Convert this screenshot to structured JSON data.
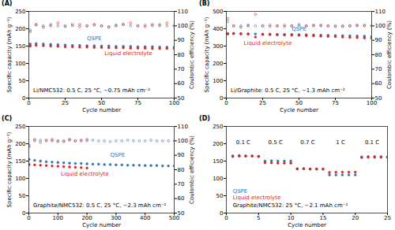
{
  "chart_data": [
    {
      "type": "scatter",
      "title": "(A)",
      "x_label": "Cycle number",
      "y_label": "Specific capacity (mAh g⁻¹)",
      "y2_label": "Coulombic efficiency (%)",
      "xlim": [
        0,
        100
      ],
      "xticks": [
        0,
        25,
        50,
        75,
        100
      ],
      "ylim": [
        0,
        250
      ],
      "yticks": [
        0,
        50,
        100,
        150,
        200,
        250
      ],
      "y2lim": [
        50,
        110
      ],
      "y2ticks": [
        50,
        60,
        70,
        80,
        90,
        100,
        110
      ],
      "x": [
        1,
        5,
        10,
        15,
        20,
        25,
        30,
        35,
        40,
        45,
        50,
        55,
        60,
        65,
        70,
        75,
        80,
        85,
        90,
        95,
        100
      ],
      "series": [
        {
          "name": "QSPE",
          "color": "#2e75b6",
          "marker": "circle",
          "values": [
            156,
            157,
            156,
            155,
            154,
            153,
            152,
            152,
            151,
            151,
            150,
            150,
            149,
            149,
            149,
            148,
            148,
            148,
            147,
            147,
            147
          ]
        },
        {
          "name": "Liquid electrolyte",
          "color": "#e2231a",
          "marker": "circle",
          "values": [
            150,
            152,
            151,
            150,
            149,
            148,
            148,
            147,
            147,
            146,
            146,
            145,
            145,
            145,
            144,
            144,
            144,
            143,
            143,
            143,
            143
          ]
        },
        {
          "name": "QSPE",
          "color": "#2e75b6",
          "marker": "open_circle",
          "axis": "y2",
          "values": [
            97,
            100.5,
            100,
            101,
            100,
            99.5,
            100,
            101,
            100,
            100.5,
            100,
            99.5,
            100.5,
            101,
            100,
            100,
            100.5,
            100,
            101,
            100,
            100
          ]
        },
        {
          "name": "Liquid electrolyte",
          "color": "#e2231a",
          "marker": "open_circle",
          "axis": "y2",
          "values": [
            96,
            101,
            99,
            100,
            102,
            100,
            101,
            99.5,
            100,
            101,
            100,
            99,
            100,
            101,
            102,
            100,
            99.5,
            101,
            100,
            102,
            100
          ]
        }
      ],
      "annotations": [
        {
          "text": "QSPE",
          "x": 40,
          "y": 172,
          "color": "#2e75b6"
        },
        {
          "text": "Liquid electrolyte",
          "x": 52,
          "y": 128,
          "color": "#e2231a"
        },
        {
          "text": "Li/NMC532: 0.5 C, 25 °C, ~0.75 mAh cm⁻²",
          "x": 3,
          "y": 22,
          "color": "#000000"
        }
      ]
    },
    {
      "type": "scatter",
      "title": "(B)",
      "x_label": "Cycle number",
      "y_label": "Specific capacity (mAh g⁻¹)",
      "y2_label": "Coulombic efficiency (%)",
      "xlim": [
        0,
        100
      ],
      "xticks": [
        0,
        25,
        50,
        75,
        100
      ],
      "ylim": [
        0,
        500
      ],
      "yticks": [
        0,
        100,
        200,
        300,
        400,
        500
      ],
      "y2lim": [
        50,
        110
      ],
      "y2ticks": [
        50,
        60,
        70,
        80,
        90,
        100,
        110
      ],
      "x": [
        1,
        5,
        10,
        15,
        20,
        25,
        30,
        35,
        40,
        45,
        50,
        55,
        60,
        65,
        70,
        75,
        80,
        85,
        90,
        95,
        100
      ],
      "series": [
        {
          "name": "QSPE",
          "color": "#2e75b6",
          "marker": "circle",
          "values": [
            372,
            373,
            372,
            371,
            370,
            369,
            369,
            368,
            367,
            367,
            366,
            365,
            364,
            363,
            362,
            361,
            360,
            359,
            358,
            357,
            356
          ]
        },
        {
          "name": "Liquid electrolyte",
          "color": "#e2231a",
          "marker": "circle",
          "values": [
            370,
            372,
            370,
            369,
            352,
            367,
            366,
            365,
            364,
            363,
            362,
            360,
            359,
            357,
            356,
            354,
            352,
            350,
            349,
            347,
            346
          ]
        },
        {
          "name": "QSPE",
          "color": "#2e75b6",
          "marker": "open_circle",
          "axis": "y2",
          "values": [
            103,
            100,
            100,
            100.5,
            100,
            100,
            99.5,
            100,
            100.5,
            100,
            100,
            100,
            100.5,
            100,
            100,
            100,
            99.5,
            100,
            100,
            100.5,
            100
          ]
        },
        {
          "name": "Liquid electrolyte",
          "color": "#e2231a",
          "marker": "open_circle",
          "axis": "y2",
          "values": [
            105,
            100,
            99,
            100,
            108,
            100,
            100.5,
            100,
            99.5,
            100,
            101,
            100,
            100,
            100.5,
            100,
            99.5,
            100,
            100,
            100.5,
            100,
            100
          ]
        }
      ],
      "annotations": [
        {
          "text": "QSPE",
          "x": 45,
          "y": 400,
          "color": "#2e75b6"
        },
        {
          "text": "Liquid electrolyte",
          "x": 12,
          "y": 318,
          "color": "#e2231a"
        },
        {
          "text": "Li/Graphite: 0.5 C, 25 °C, ~1.3 mAh cm⁻²",
          "x": 3,
          "y": 45,
          "color": "#000000"
        }
      ]
    },
    {
      "type": "scatter",
      "title": "(C)",
      "x_label": "Cycle number",
      "y_label": "Specific capacity (mAh g⁻¹)",
      "y2_label": "Coulombic efficiency (%)",
      "xlim": [
        0,
        500
      ],
      "xticks": [
        0,
        100,
        200,
        300,
        400,
        500
      ],
      "ylim": [
        0,
        250
      ],
      "yticks": [
        0,
        50,
        100,
        150,
        200,
        250
      ],
      "y2lim": [
        50,
        110
      ],
      "y2ticks": [
        50,
        60,
        70,
        80,
        90,
        100,
        110
      ],
      "x": [
        1,
        20,
        40,
        60,
        80,
        100,
        120,
        140,
        160,
        180,
        200,
        220,
        240,
        260,
        280,
        300,
        320,
        340,
        360,
        380,
        400,
        420,
        440,
        460,
        480,
        500
      ],
      "series": [
        {
          "name": "QSPE",
          "color": "#2e75b6",
          "marker": "circle",
          "values": [
            155,
            152,
            150,
            148,
            147,
            146,
            145,
            144,
            143,
            143,
            142,
            141,
            141,
            140,
            140,
            139,
            139,
            138,
            138,
            138,
            137,
            137,
            137,
            136,
            136,
            136
          ]
        },
        {
          "name": "Liquid electrolyte",
          "color": "#e2231a",
          "marker": "circle",
          "values": [
            140,
            139,
            138,
            137,
            136,
            135,
            134,
            133,
            132,
            131,
            130,
            null,
            null,
            null,
            null,
            null,
            null,
            null,
            null,
            null,
            null,
            null,
            null,
            null,
            null,
            null
          ]
        },
        {
          "name": "QSPE",
          "color": "#2e75b6",
          "marker": "open_circle",
          "axis": "y2",
          "values": [
            97,
            100,
            100.5,
            100,
            100,
            99.5,
            100,
            100.5,
            100,
            100,
            100,
            100.5,
            100,
            100,
            99.5,
            100,
            100,
            100.5,
            100,
            100,
            100,
            100.5,
            100,
            100,
            100,
            100
          ]
        },
        {
          "name": "Liquid electrolyte",
          "color": "#e2231a",
          "marker": "open_circle",
          "axis": "y2",
          "values": [
            96,
            101,
            99,
            100.5,
            101,
            100,
            99.5,
            101,
            100,
            100.5,
            101,
            null,
            null,
            null,
            null,
            null,
            null,
            null,
            null,
            null,
            null,
            null,
            null,
            null,
            null,
            null
          ]
        }
      ],
      "annotations": [
        {
          "text": "QSPE",
          "x": 280,
          "y": 168,
          "color": "#2e75b6"
        },
        {
          "text": "Liquid electrolyte",
          "x": 110,
          "y": 112,
          "color": "#e2231a"
        },
        {
          "text": "Graphite/NMC532: 0.5 C, 25 °C, ~2.3 mAh cm⁻²",
          "x": 15,
          "y": 22,
          "color": "#000000"
        }
      ]
    },
    {
      "type": "scatter",
      "title": "(D)",
      "x_label": "Cycle number",
      "xlim": [
        0,
        25
      ],
      "xticks": [
        0,
        5,
        10,
        15,
        20,
        25
      ],
      "ylim": [
        0,
        250
      ],
      "yticks": [
        0,
        50,
        100,
        150,
        200,
        250
      ],
      "x": [
        1,
        2,
        3,
        4,
        5,
        6,
        7,
        8,
        9,
        10,
        11,
        12,
        13,
        14,
        15,
        16,
        17,
        18,
        19,
        20,
        21,
        22,
        23,
        24,
        25
      ],
      "series": [
        {
          "name": "QSPE",
          "color": "#2e75b6",
          "marker": "circle",
          "values": [
            165,
            166,
            165,
            165,
            164,
            150,
            151,
            150,
            150,
            150,
            128,
            128,
            127,
            127,
            127,
            110,
            110,
            110,
            110,
            110,
            162,
            163,
            163,
            163,
            162
          ]
        },
        {
          "name": "Liquid electrolyte",
          "color": "#e2231a",
          "marker": "circle",
          "values": [
            163,
            164,
            164,
            164,
            163,
            145,
            145,
            144,
            144,
            144,
            127,
            128,
            127,
            127,
            127,
            117,
            118,
            118,
            118,
            118,
            160,
            161,
            161,
            161,
            161
          ]
        }
      ],
      "annotations": [
        {
          "text": "0.1 C",
          "x": 1.5,
          "y": 205,
          "color": "#000000"
        },
        {
          "text": "0.5 C",
          "x": 6.5,
          "y": 205,
          "color": "#000000"
        },
        {
          "text": "0.7 C",
          "x": 11.5,
          "y": 205,
          "color": "#000000"
        },
        {
          "text": "1 C",
          "x": 17,
          "y": 205,
          "color": "#000000"
        },
        {
          "text": "0.1 C",
          "x": 21.5,
          "y": 205,
          "color": "#000000"
        },
        {
          "text": "QSPE",
          "x": 1,
          "y": 62,
          "color": "#2e75b6"
        },
        {
          "text": "Liquid electrolyte",
          "x": 1,
          "y": 44,
          "color": "#e2231a"
        },
        {
          "text": "Graphite/NMC532: 25 °C, ~2.1 mAh cm⁻²",
          "x": 1,
          "y": 22,
          "color": "#000000"
        }
      ]
    }
  ]
}
